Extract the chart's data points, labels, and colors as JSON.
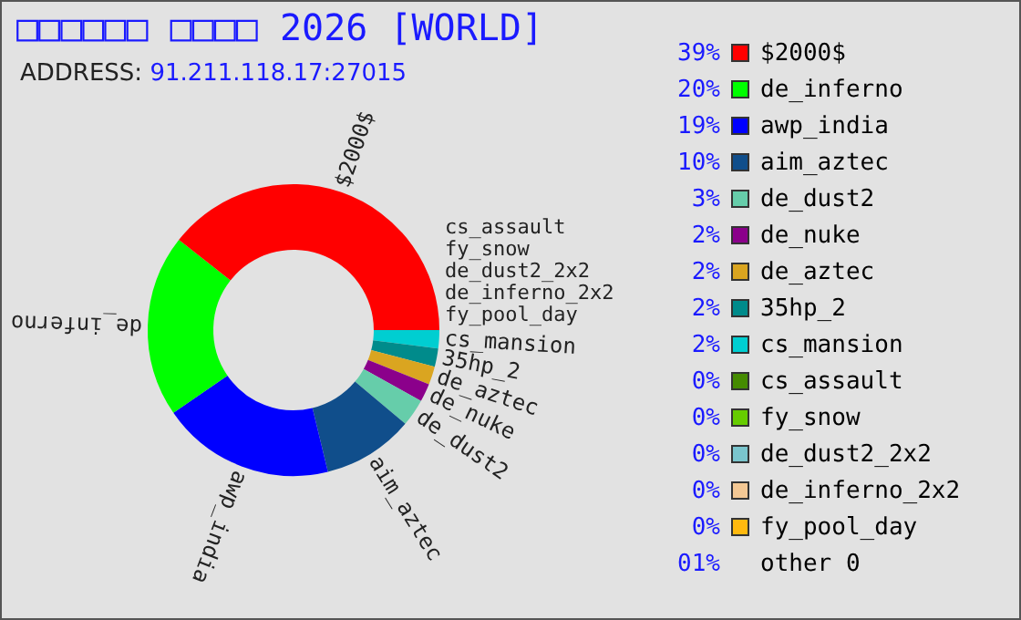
{
  "chart_data": {
    "type": "donut",
    "title": "□□□□□□ □□□□ 2026 [WORLD]",
    "subtitle": "ADDRESS: 91.211.118.17:27015",
    "categories": [
      "$2000$",
      "de_inferno",
      "awp_india",
      "aim_aztec",
      "de_dust2",
      "de_nuke",
      "de_aztec",
      "35hp_2",
      "cs_mansion",
      "cs_assault",
      "fy_snow",
      "de_dust2_2x2",
      "de_inferno_2x2",
      "fy_pool_day"
    ],
    "values": [
      39,
      20,
      19,
      10,
      3,
      2,
      2,
      2,
      2,
      0,
      0,
      0,
      0,
      0
    ],
    "colors": [
      "#ff0000",
      "#00ff00",
      "#0000ff",
      "#104e8b",
      "#66cdaa",
      "#8b008b",
      "#daa520",
      "#008b8b",
      "#00ced1",
      "#458b00",
      "#66cc00",
      "#7ac5cd",
      "#f4c894",
      "#ffb90f"
    ],
    "annotations": [
      "39%",
      "20%",
      "19%",
      "10%",
      "3%",
      "2%",
      "2%",
      "2%",
      "2%",
      "0%",
      "0%",
      "0%",
      "0%",
      "0%",
      "01%",
      "other 0"
    ],
    "legend": "right"
  }
}
